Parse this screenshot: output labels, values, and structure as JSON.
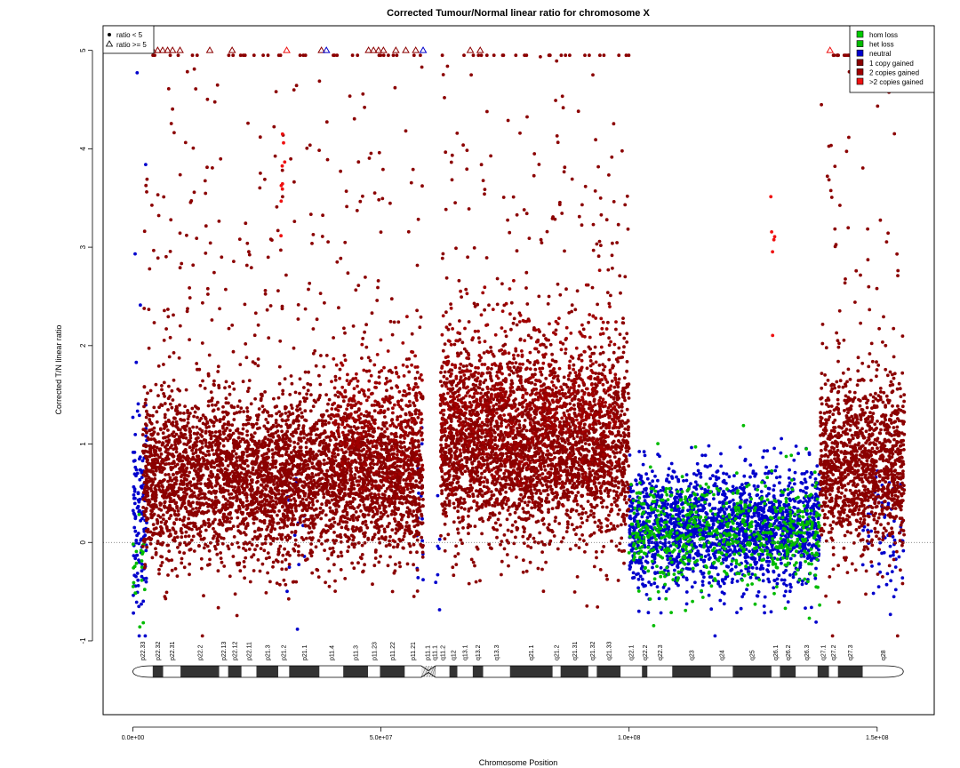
{
  "chart_data": {
    "type": "scatter",
    "title": "Corrected Tumour/Normal linear ratio for chromosome  X",
    "xlabel": "Chromosome Position",
    "ylabel": "Corrected T/N linear ratio",
    "xlim": [
      -6000000,
      161500000
    ],
    "ylim": [
      -1.75,
      5.25
    ],
    "x_ticks": [
      {
        "value": 0,
        "label": "0.0e+00"
      },
      {
        "value": 50000000,
        "label": "5.0e+07"
      },
      {
        "value": 100000000,
        "label": "1.0e+08"
      },
      {
        "value": 150000000,
        "label": "1.5e+08"
      }
    ],
    "y_ticks": [
      {
        "value": -1,
        "label": "-1"
      },
      {
        "value": 0,
        "label": "0"
      },
      {
        "value": 1,
        "label": "1"
      },
      {
        "value": 2,
        "label": "2"
      },
      {
        "value": 3,
        "label": "3"
      },
      {
        "value": 4,
        "label": "4"
      },
      {
        "value": 5,
        "label": "5"
      }
    ],
    "reference_line": 0,
    "ratio_cap": 5,
    "shape_legend": {
      "placement": "top-left",
      "entries": [
        {
          "symbol": "circle",
          "label": "ratio < 5"
        },
        {
          "symbol": "triangle",
          "label": "ratio >= 5"
        }
      ]
    },
    "legend": {
      "placement": "top-right",
      "entries": [
        {
          "label": "hom loss",
          "color": "#00cc00"
        },
        {
          "label": "het loss",
          "color": "#00bb00"
        },
        {
          "label": "neutral",
          "color": "#0000cc"
        },
        {
          "label": "1 copy gained",
          "color": "#8b0000"
        },
        {
          "label": "2 copies gained",
          "color": "#a00000"
        },
        {
          "label": ">2 copies gained",
          "color": "#ee1111"
        }
      ]
    },
    "series": [
      {
        "legend": "neutral",
        "color": "#0000cc",
        "segments": [
          {
            "x0": 0,
            "x1": 2800000,
            "level": 0.2,
            "spread": 0.9,
            "dens": 8,
            "tail": 1.6
          },
          {
            "x0": 31000000,
            "x1": 35000000,
            "level": 0.3,
            "spread": 0.7,
            "dens": 0.6
          },
          {
            "x0": 57000000,
            "x1": 58500000,
            "level": 0.4,
            "spread": 0.9,
            "dens": 2
          },
          {
            "x0": 61000000,
            "x1": 62000000,
            "level": 0.1,
            "spread": 0.6,
            "dens": 1.2
          },
          {
            "x0": 100000000,
            "x1": 138500000,
            "level": 0.15,
            "spread": 0.55,
            "dens": 9
          },
          {
            "x0": 147000000,
            "x1": 155500000,
            "level": 0.1,
            "spread": 0.6,
            "dens": 1.5
          }
        ]
      },
      {
        "legend": "het loss",
        "color": "#00bb00",
        "segments": [
          {
            "x0": 0,
            "x1": 2500000,
            "level": -0.3,
            "spread": 0.5,
            "dens": 1.5
          },
          {
            "x0": 100000000,
            "x1": 138500000,
            "level": 0.1,
            "spread": 0.5,
            "dens": 3
          }
        ]
      },
      {
        "legend": "1 copy gained",
        "color": "#8b0000",
        "segments": [
          {
            "x0": 2000000,
            "x1": 58500000,
            "level": 0.65,
            "spread": 0.75,
            "dens": 14,
            "tail": 1.8
          },
          {
            "x0": 62000000,
            "x1": 100000000,
            "level": 0.95,
            "spread": 0.85,
            "dens": 14,
            "tail": 1.7
          },
          {
            "x0": 138500000,
            "x1": 155500000,
            "level": 0.75,
            "spread": 0.8,
            "dens": 14,
            "tail": 1.9
          }
        ]
      },
      {
        "legend": "2 copies gained",
        "color": "#a00000",
        "segments": [
          {
            "x0": 40000000,
            "x1": 58500000,
            "level": 1.2,
            "spread": 0.7,
            "dens": 3
          },
          {
            "x0": 62000000,
            "x1": 98000000,
            "level": 1.4,
            "spread": 0.8,
            "dens": 4
          }
        ]
      },
      {
        "legend": ">2 copies gained",
        "color": "#ee1111",
        "segments": [
          {
            "x0": 29800000,
            "x1": 30600000,
            "level": 3.6,
            "spread": 0.7,
            "dens": 2
          },
          {
            "x0": 128500000,
            "x1": 129500000,
            "level": 3.0,
            "spread": 1.0,
            "dens": 1
          }
        ]
      }
    ],
    "capped_points": [
      {
        "x": 500000,
        "legend": "neutral"
      },
      {
        "x": 1000000,
        "legend": "neutral"
      },
      {
        "x": 1500000,
        "legend": "neutral"
      },
      {
        "x": 2000000,
        "legend": "neutral"
      },
      {
        "x": 2500000,
        "legend": "1 copy gained"
      },
      {
        "x": 3200000,
        "legend": "1 copy gained"
      },
      {
        "x": 4000000,
        "legend": "1 copy gained"
      },
      {
        "x": 5000000,
        "legend": "1 copy gained"
      },
      {
        "x": 6000000,
        "legend": "1 copy gained"
      },
      {
        "x": 7000000,
        "legend": "1 copy gained"
      },
      {
        "x": 8000000,
        "legend": "1 copy gained"
      },
      {
        "x": 9500000,
        "legend": "1 copy gained"
      },
      {
        "x": 15500000,
        "legend": "1 copy gained"
      },
      {
        "x": 20000000,
        "legend": "1 copy gained"
      },
      {
        "x": 31000000,
        "legend": ">2 copies gained"
      },
      {
        "x": 38000000,
        "legend": "1 copy gained"
      },
      {
        "x": 39000000,
        "legend": "neutral"
      },
      {
        "x": 47500000,
        "legend": "1 copy gained"
      },
      {
        "x": 48500000,
        "legend": "1 copy gained"
      },
      {
        "x": 49500000,
        "legend": "1 copy gained"
      },
      {
        "x": 50500000,
        "legend": "1 copy gained"
      },
      {
        "x": 53000000,
        "legend": "1 copy gained"
      },
      {
        "x": 55000000,
        "legend": "1 copy gained"
      },
      {
        "x": 57000000,
        "legend": "1 copy gained"
      },
      {
        "x": 58500000,
        "legend": "neutral"
      },
      {
        "x": 68000000,
        "legend": "1 copy gained"
      },
      {
        "x": 70000000,
        "legend": "1 copy gained"
      },
      {
        "x": 140500000,
        "legend": ">2 copies gained"
      },
      {
        "x": 148000000,
        "legend": "neutral"
      },
      {
        "x": 150000000,
        "legend": "1 copy gained"
      },
      {
        "x": 154000000,
        "legend": "neutral"
      }
    ],
    "ideogram": {
      "centromere": [
        58100000,
        61000000
      ],
      "bands": [
        {
          "name": "p22.33",
          "start": 0,
          "end": 4000000,
          "stain": "gneg"
        },
        {
          "name": "p22.32",
          "start": 4000000,
          "end": 6100000,
          "stain": "gpos"
        },
        {
          "name": "p22.31",
          "start": 6100000,
          "end": 9600000,
          "stain": "gneg"
        },
        {
          "name": "p22.2",
          "start": 9600000,
          "end": 17400000,
          "stain": "gpos"
        },
        {
          "name": "p22.13",
          "start": 17400000,
          "end": 19200000,
          "stain": "gneg"
        },
        {
          "name": "p22.12",
          "start": 19200000,
          "end": 21900000,
          "stain": "gpos"
        },
        {
          "name": "p22.11",
          "start": 21900000,
          "end": 24900000,
          "stain": "gneg"
        },
        {
          "name": "p21.3",
          "start": 24900000,
          "end": 29300000,
          "stain": "gpos"
        },
        {
          "name": "p21.2",
          "start": 29300000,
          "end": 31500000,
          "stain": "gneg"
        },
        {
          "name": "p21.1",
          "start": 31500000,
          "end": 37600000,
          "stain": "gpos"
        },
        {
          "name": "p11.4",
          "start": 37600000,
          "end": 42400000,
          "stain": "gneg"
        },
        {
          "name": "p11.3",
          "start": 42400000,
          "end": 47400000,
          "stain": "gpos"
        },
        {
          "name": "p11.23",
          "start": 47400000,
          "end": 49800000,
          "stain": "gneg"
        },
        {
          "name": "p11.22",
          "start": 49800000,
          "end": 54800000,
          "stain": "gpos"
        },
        {
          "name": "p11.21",
          "start": 54800000,
          "end": 58100000,
          "stain": "gneg"
        },
        {
          "name": "p11.1",
          "start": 58100000,
          "end": 60600000,
          "stain": "acen"
        },
        {
          "name": "q11.1",
          "start": 60600000,
          "end": 61000000,
          "stain": "acen"
        },
        {
          "name": "q11.2",
          "start": 61000000,
          "end": 63800000,
          "stain": "gneg"
        },
        {
          "name": "q12",
          "start": 63800000,
          "end": 65400000,
          "stain": "gpos"
        },
        {
          "name": "q13.1",
          "start": 65400000,
          "end": 68500000,
          "stain": "gneg"
        },
        {
          "name": "q13.2",
          "start": 68500000,
          "end": 70600000,
          "stain": "gpos"
        },
        {
          "name": "q13.3",
          "start": 70600000,
          "end": 76000000,
          "stain": "gneg"
        },
        {
          "name": "q21.1",
          "start": 76000000,
          "end": 84600000,
          "stain": "gpos"
        },
        {
          "name": "q21.2",
          "start": 84600000,
          "end": 86200000,
          "stain": "gneg"
        },
        {
          "name": "q21.31",
          "start": 86200000,
          "end": 91800000,
          "stain": "gpos"
        },
        {
          "name": "q21.32",
          "start": 91800000,
          "end": 93500000,
          "stain": "gneg"
        },
        {
          "name": "q21.33",
          "start": 93500000,
          "end": 98300000,
          "stain": "gpos"
        },
        {
          "name": "q22.1",
          "start": 98300000,
          "end": 102600000,
          "stain": "gneg"
        },
        {
          "name": "q22.2",
          "start": 102600000,
          "end": 103700000,
          "stain": "gpos"
        },
        {
          "name": "q22.3",
          "start": 103700000,
          "end": 108700000,
          "stain": "gneg"
        },
        {
          "name": "q23",
          "start": 108700000,
          "end": 116500000,
          "stain": "gpos"
        },
        {
          "name": "q24",
          "start": 116500000,
          "end": 120900000,
          "stain": "gneg"
        },
        {
          "name": "q25",
          "start": 120900000,
          "end": 128700000,
          "stain": "gpos"
        },
        {
          "name": "q26.1",
          "start": 128700000,
          "end": 130400000,
          "stain": "gneg"
        },
        {
          "name": "q26.2",
          "start": 130400000,
          "end": 133600000,
          "stain": "gpos"
        },
        {
          "name": "q26.3",
          "start": 133600000,
          "end": 138000000,
          "stain": "gneg"
        },
        {
          "name": "q27.1",
          "start": 138000000,
          "end": 140300000,
          "stain": "gpos"
        },
        {
          "name": "q27.2",
          "start": 140300000,
          "end": 142100000,
          "stain": "gneg"
        },
        {
          "name": "q27.3",
          "start": 142100000,
          "end": 147100000,
          "stain": "gpos"
        },
        {
          "name": "q28",
          "start": 147100000,
          "end": 155270000,
          "stain": "gneg"
        }
      ]
    }
  }
}
